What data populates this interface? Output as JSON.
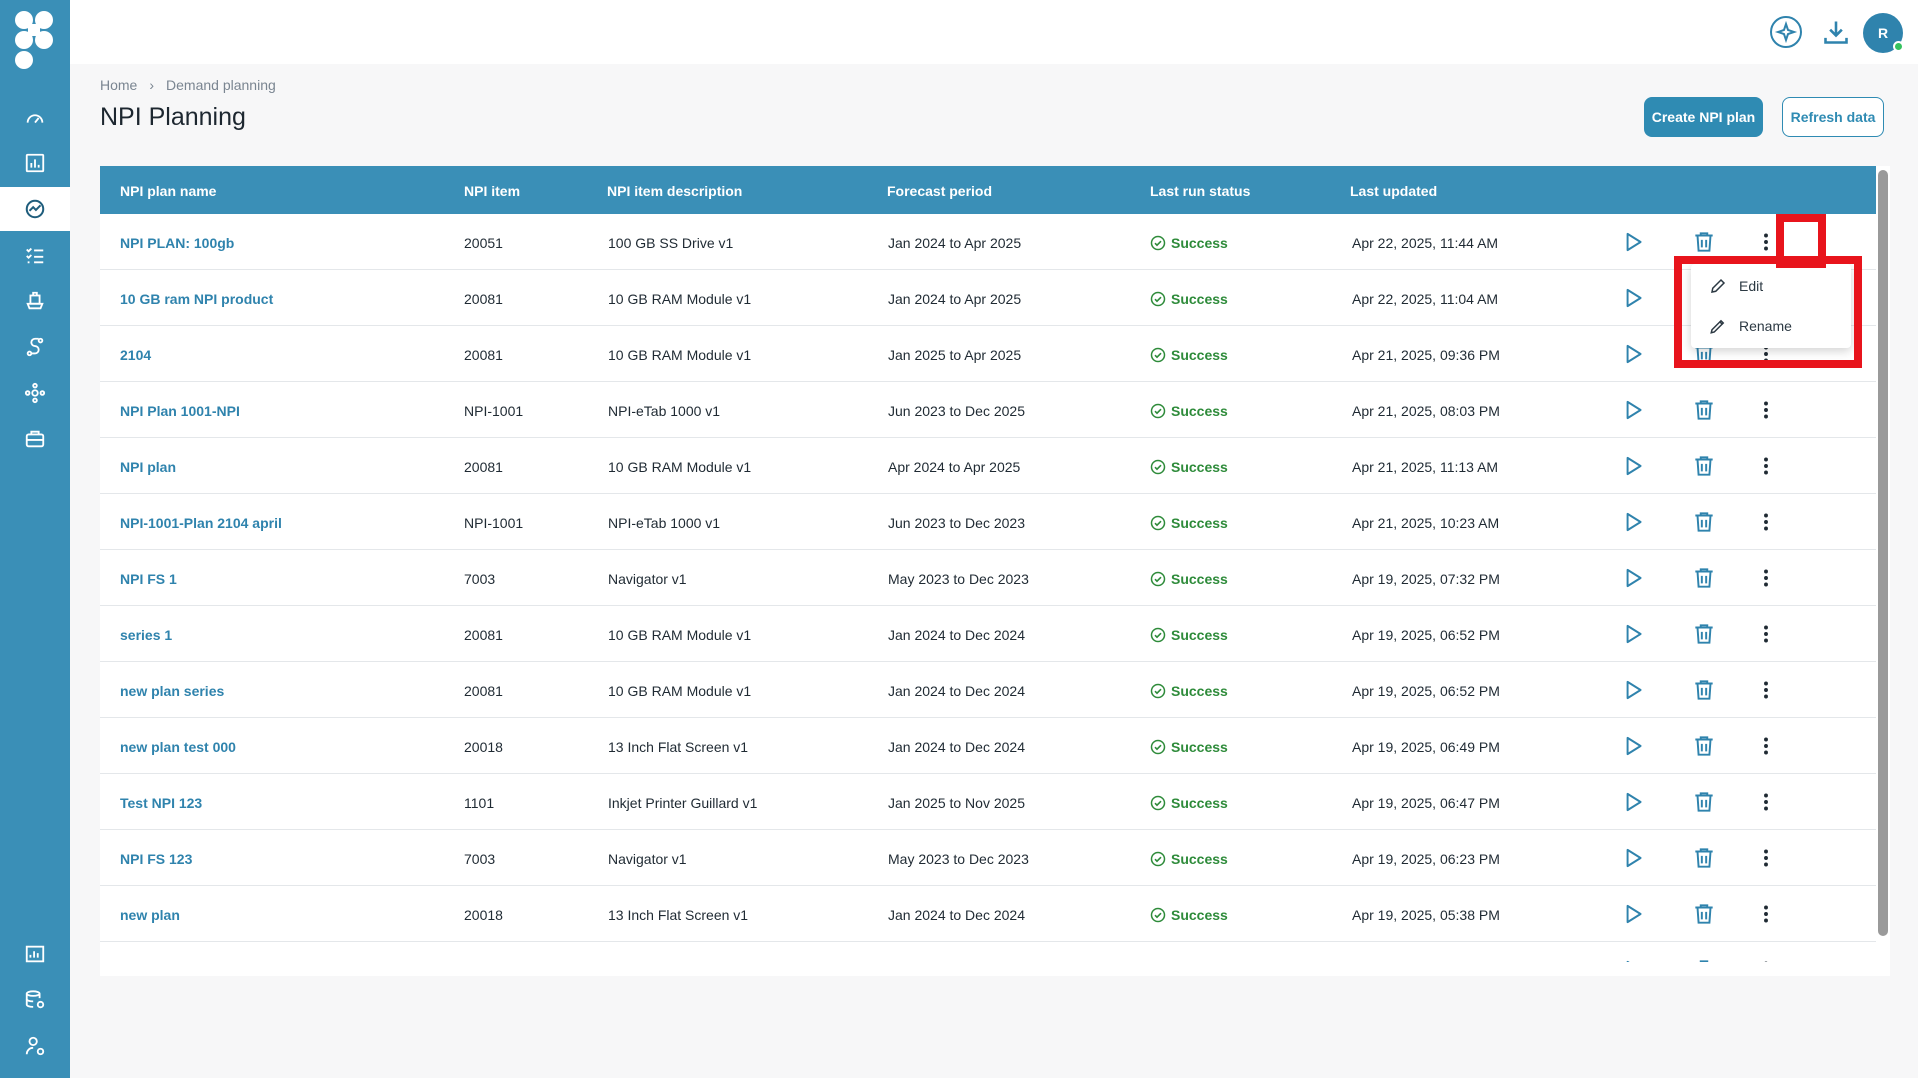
{
  "sidebar": {
    "items": [
      {
        "icon": "speedometer-icon"
      },
      {
        "icon": "bar-chart-icon"
      },
      {
        "icon": "trend-chart-icon",
        "active": true
      },
      {
        "icon": "checklist-icon"
      },
      {
        "icon": "ship-icon"
      },
      {
        "icon": "route-icon"
      },
      {
        "icon": "network-icon"
      },
      {
        "icon": "briefcase-icon"
      }
    ],
    "bottom_items": [
      {
        "icon": "report-icon"
      },
      {
        "icon": "database-settings-icon"
      },
      {
        "icon": "user-settings-icon"
      }
    ]
  },
  "topbar": {
    "ai_icon": "sparkle-icon",
    "download_icon": "download-icon",
    "avatar_initial": "R"
  },
  "breadcrumb": {
    "home": "Home",
    "current": "Demand planning"
  },
  "page": {
    "title": "NPI Planning",
    "create_button": "Create NPI plan",
    "refresh_button": "Refresh data"
  },
  "table": {
    "columns": [
      "NPI plan name",
      "NPI item",
      "NPI item description",
      "Forecast period",
      "Last run status",
      "Last updated"
    ],
    "rows": [
      {
        "name": "NPI PLAN: 100gb",
        "item": "20051",
        "desc": "100 GB SS Drive v1",
        "period": "Jan 2024 to Apr 2025",
        "status": "Success",
        "updated": "Apr 22, 2025, 11:44 AM"
      },
      {
        "name": "10 GB ram NPI product",
        "item": "20081",
        "desc": "10 GB RAM Module v1",
        "period": "Jan 2024 to Apr 2025",
        "status": "Success",
        "updated": "Apr 22, 2025, 11:04 AM"
      },
      {
        "name": "2104",
        "item": "20081",
        "desc": "10 GB RAM Module v1",
        "period": "Jan 2025 to Apr 2025",
        "status": "Success",
        "updated": "Apr 21, 2025, 09:36 PM"
      },
      {
        "name": "NPI Plan 1001-NPI",
        "item": "NPI-1001",
        "desc": "NPI-eTab 1000 v1",
        "period": "Jun 2023 to Dec 2025",
        "status": "Success",
        "updated": "Apr 21, 2025, 08:03 PM"
      },
      {
        "name": "NPI plan",
        "item": "20081",
        "desc": "10 GB RAM Module v1",
        "period": "Apr 2024 to Apr 2025",
        "status": "Success",
        "updated": "Apr 21, 2025, 11:13 AM"
      },
      {
        "name": "NPI-1001-Plan 2104 april",
        "item": "NPI-1001",
        "desc": "NPI-eTab 1000 v1",
        "period": "Jun 2023 to Dec 2023",
        "status": "Success",
        "updated": "Apr 21, 2025, 10:23 AM"
      },
      {
        "name": "NPI FS 1",
        "item": "7003",
        "desc": "Navigator v1",
        "period": "May 2023 to Dec 2023",
        "status": "Success",
        "updated": "Apr 19, 2025, 07:32 PM"
      },
      {
        "name": "series 1",
        "item": "20081",
        "desc": "10 GB RAM Module v1",
        "period": "Jan 2024 to Dec 2024",
        "status": "Success",
        "updated": "Apr 19, 2025, 06:52 PM"
      },
      {
        "name": "new plan series",
        "item": "20081",
        "desc": "10 GB RAM Module v1",
        "period": "Jan 2024 to Dec 2024",
        "status": "Success",
        "updated": "Apr 19, 2025, 06:52 PM"
      },
      {
        "name": "new plan test 000",
        "item": "20018",
        "desc": "13 Inch Flat Screen v1",
        "period": "Jan 2024 to Dec 2024",
        "status": "Success",
        "updated": "Apr 19, 2025, 06:49 PM"
      },
      {
        "name": "Test NPI 123",
        "item": "1101",
        "desc": "Inkjet Printer Guillard v1",
        "period": "Jan 2025 to Nov 2025",
        "status": "Success",
        "updated": "Apr 19, 2025, 06:47 PM"
      },
      {
        "name": "NPI FS 123",
        "item": "7003",
        "desc": "Navigator v1",
        "period": "May 2023 to Dec 2023",
        "status": "Success",
        "updated": "Apr 19, 2025, 06:23 PM"
      },
      {
        "name": "new plan",
        "item": "20018",
        "desc": "13 Inch Flat Screen v1",
        "period": "Jan 2024 to Dec 2024",
        "status": "Success",
        "updated": "Apr 19, 2025, 05:38 PM"
      },
      {
        "name": "",
        "item": "",
        "desc": "",
        "period": "",
        "status": "",
        "updated": ""
      }
    ]
  },
  "menu": {
    "items": [
      {
        "label": "Edit",
        "icon": "pencil-icon"
      },
      {
        "label": "Rename",
        "icon": "pen-nib-icon"
      }
    ]
  },
  "colors": {
    "brand": "#3a8fb7",
    "link": "#2f83ad",
    "success": "#2e8b3a",
    "highlight": "#e8141c"
  }
}
